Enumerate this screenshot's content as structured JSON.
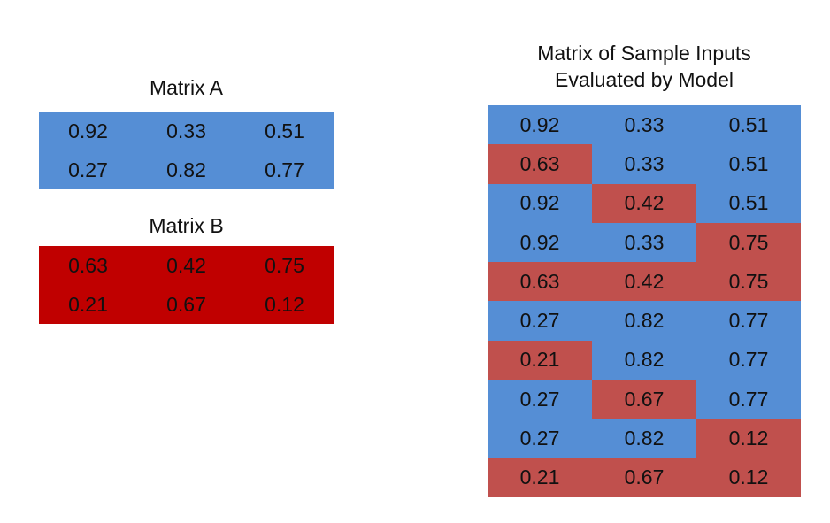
{
  "colors": {
    "matrix_a": "#558ed5",
    "matrix_b": "#c00000",
    "sample_a": "#558ed5",
    "sample_b": "#c0504d"
  },
  "matrix_a": {
    "title": "Matrix A",
    "rows": [
      [
        "0.92",
        "0.33",
        "0.51"
      ],
      [
        "0.27",
        "0.82",
        "0.77"
      ]
    ]
  },
  "matrix_b": {
    "title": "Matrix B",
    "rows": [
      [
        "0.63",
        "0.42",
        "0.75"
      ],
      [
        "0.21",
        "0.67",
        "0.12"
      ]
    ]
  },
  "samples": {
    "title_line1": "Matrix of Sample Inputs",
    "title_line2": "Evaluated by Model",
    "rows": [
      [
        "0.92",
        "0.33",
        "0.51"
      ],
      [
        "0.63",
        "0.33",
        "0.51"
      ],
      [
        "0.92",
        "0.42",
        "0.51"
      ],
      [
        "0.92",
        "0.33",
        "0.75"
      ],
      [
        "0.63",
        "0.42",
        "0.75"
      ],
      [
        "0.27",
        "0.82",
        "0.77"
      ],
      [
        "0.21",
        "0.82",
        "0.77"
      ],
      [
        "0.27",
        "0.67",
        "0.77"
      ],
      [
        "0.27",
        "0.82",
        "0.12"
      ],
      [
        "0.21",
        "0.67",
        "0.12"
      ]
    ],
    "sources": [
      [
        "A",
        "A",
        "A"
      ],
      [
        "B",
        "A",
        "A"
      ],
      [
        "A",
        "B",
        "A"
      ],
      [
        "A",
        "A",
        "B"
      ],
      [
        "B",
        "B",
        "B"
      ],
      [
        "A",
        "A",
        "A"
      ],
      [
        "B",
        "A",
        "A"
      ],
      [
        "A",
        "B",
        "A"
      ],
      [
        "A",
        "A",
        "B"
      ],
      [
        "B",
        "B",
        "B"
      ]
    ]
  }
}
